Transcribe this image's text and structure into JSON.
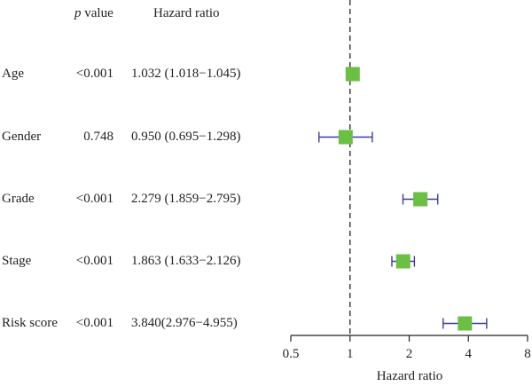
{
  "header": {
    "p_symbol": "p",
    "p_word": "value",
    "hr_label": "Hazard ratio"
  },
  "rows": [
    {
      "variable": "Age",
      "p_value": "<0.001",
      "hr_text": "1.032 (1.018−1.045)"
    },
    {
      "variable": "Gender",
      "p_value": "0.748",
      "hr_text": "0.950 (0.695−1.298)"
    },
    {
      "variable": "Grade",
      "p_value": "<0.001",
      "hr_text": "2.279 (1.859−2.795)"
    },
    {
      "variable": "Stage",
      "p_value": "<0.001",
      "hr_text": "1.863 (1.633−2.126)"
    },
    {
      "variable": "Risk score",
      "p_value": "<0.001",
      "hr_text": "3.840(2.976−4.955)"
    }
  ],
  "chart_data": {
    "type": "forest",
    "scale": "log",
    "xlabel": "Hazard ratio",
    "xlim": [
      0.5,
      8
    ],
    "xticks": [
      0.5,
      1,
      2,
      4,
      8
    ],
    "xtick_labels": [
      "0.5",
      "1",
      "2",
      "4",
      "8"
    ],
    "reference_line": 1,
    "categories": [
      "Age",
      "Gender",
      "Grade",
      "Stage",
      "Risk score"
    ],
    "hr": [
      1.032,
      0.95,
      2.279,
      1.863,
      3.84
    ],
    "ci_lower": [
      1.018,
      0.695,
      1.859,
      1.633,
      2.976
    ],
    "ci_upper": [
      1.045,
      1.298,
      2.795,
      2.126,
      4.955
    ],
    "colors": {
      "marker": "#6bbf45",
      "whisker": "#3d3d9a",
      "axis": "#222222"
    }
  }
}
